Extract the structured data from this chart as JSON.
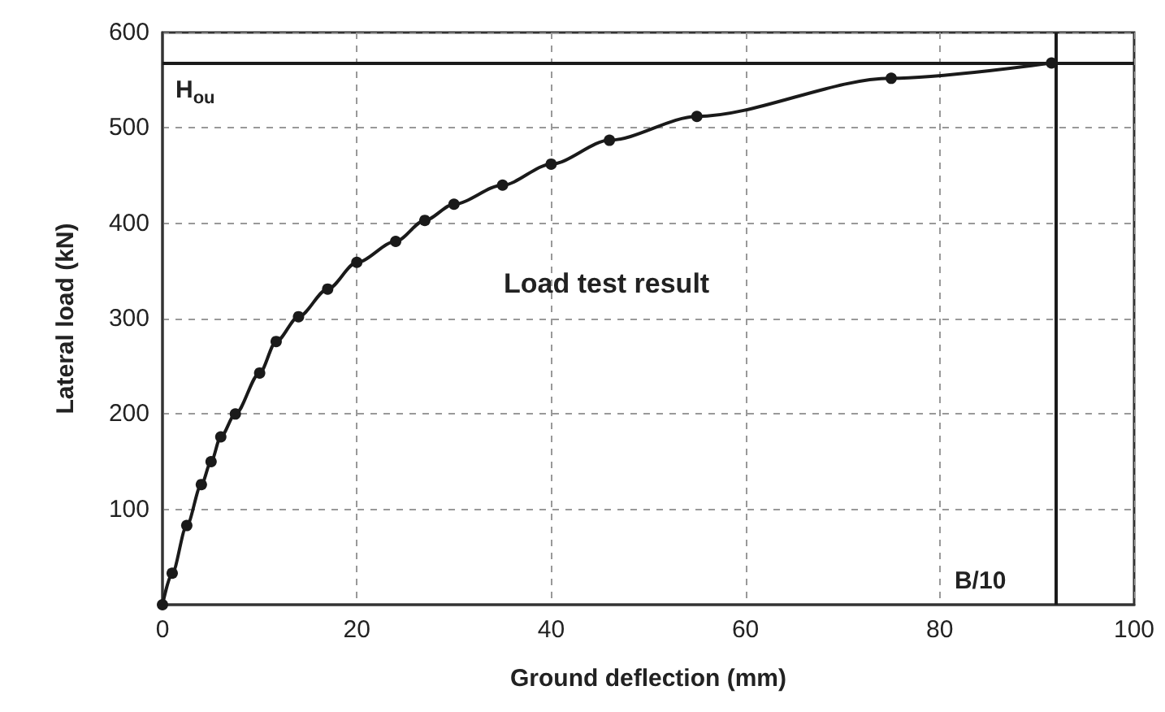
{
  "chart_data": {
    "type": "line",
    "xlabel": "Ground deflection (mm)",
    "ylabel": "Lateral load (kN)",
    "x": [
      0,
      1,
      2.5,
      4,
      5,
      6,
      7.5,
      10,
      11.7,
      14,
      17,
      20,
      24,
      27,
      30,
      35,
      40,
      46,
      55,
      75,
      91.5
    ],
    "series": [
      {
        "color": "#1a1a1a",
        "values": [
          0,
          33,
          83,
          126,
          150,
          176,
          200,
          243,
          276,
          302,
          331,
          359,
          381,
          403,
          420,
          440,
          462,
          487,
          512,
          552,
          568
        ]
      }
    ],
    "xlim": [
      0,
      100
    ],
    "xticks": [
      0,
      20,
      40,
      60,
      80,
      100
    ],
    "ylim": [
      0,
      600
    ],
    "yticks": [
      100,
      200,
      300,
      400,
      500,
      600
    ],
    "grid": true,
    "marker": "circle",
    "line_style": "solid",
    "ref_lines": [
      {
        "axis": "y",
        "value": 568,
        "label": "H$_{ou}$",
        "color": "#1a1a1a"
      },
      {
        "axis": "x",
        "value": 92,
        "label": "B/10",
        "color": "#1a1a1a"
      }
    ],
    "annotations": [
      "Load test result"
    ]
  }
}
